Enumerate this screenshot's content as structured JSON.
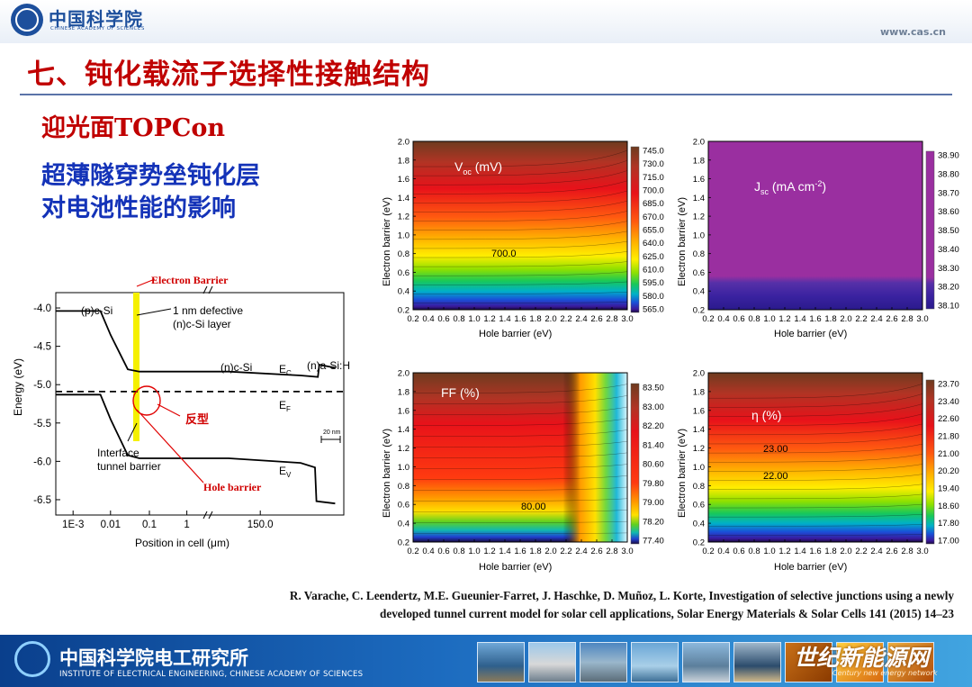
{
  "header": {
    "logo_text": "中国科学院",
    "logo_sub": "CHINESE ACADEMY OF SCIENCES",
    "url": "www.cas.cn"
  },
  "slide": {
    "title": "七、钝化载流子选择性接触结构",
    "subtitle_red": "迎光面TOPCon",
    "subtitle_blue_1": "超薄隧穿势垒钝化层",
    "subtitle_blue_2": "对电池性能的影响",
    "citation_1": "R. Varache, C. Leendertz, M.E. Gueunier-Farret, J. Haschke, D. Muñoz, L. Korte, Investigation of selective junctions using a newly",
    "citation_2": "developed tunnel current model for solar cell applications, Solar Energy Materials & Solar Cells 141 (2015) 14–23"
  },
  "footer": {
    "institute_cn": "中国科学院电工研究所",
    "institute_en": "INSTITUTE OF ELECTRICAL ENGINEERING, CHINESE ACADEMY OF SCIENCES",
    "watermark": "世纪新能源网",
    "watermark_sub": "Century new energy network"
  },
  "chart_data": [
    {
      "type": "line",
      "xlabel": "Position in cell (μm)",
      "ylabel": "Energy (eV)",
      "xtick_labels": [
        "1E-3",
        "0.01",
        "0.1",
        "1",
        "150.0"
      ],
      "yticks": [
        -4.0,
        -4.5,
        -5.0,
        -5.5,
        -6.0,
        -6.5
      ],
      "ylim": [
        -6.7,
        -3.8
      ],
      "scale_bar_label": "20 nm",
      "annotations": {
        "p_si": "(p)c-Si",
        "defective_1": "1 nm defective",
        "defective_2": "(n)c-Si layer",
        "n_si": "(n)c-Si",
        "n_asi": "(n)a-Si:H",
        "ec_main": "E",
        "ec_sub": "C",
        "ef_main": "E",
        "ef_sub": "F",
        "ev_main": "E",
        "ev_sub": "V",
        "interface_1": "Interface",
        "interface_2": "tunnel barrier",
        "electron_barrier": "Electron Barrier",
        "hole_barrier": "Hole barrier",
        "inversion": "反型"
      },
      "series": [
        {
          "name": "E_C",
          "points": [
            [
              0.0,
              -4.04
            ],
            [
              0.155,
              -4.04
            ],
            [
              0.19,
              -4.35
            ],
            [
              0.25,
              -4.8
            ],
            [
              0.29,
              -4.83
            ],
            [
              0.6,
              -4.83
            ],
            [
              0.85,
              -4.88
            ],
            [
              0.91,
              -4.9
            ],
            [
              0.915,
              -4.74
            ],
            [
              0.97,
              -4.78
            ]
          ]
        },
        {
          "name": "E_F",
          "points": [
            [
              0.0,
              -5.09
            ],
            [
              1.0,
              -5.09
            ]
          ]
        },
        {
          "name": "E_V",
          "points": [
            [
              0.0,
              -5.13
            ],
            [
              0.155,
              -5.13
            ],
            [
              0.19,
              -5.45
            ],
            [
              0.25,
              -5.92
            ],
            [
              0.29,
              -5.96
            ],
            [
              0.6,
              -5.96
            ],
            [
              0.85,
              -6.02
            ],
            [
              0.9,
              -6.08
            ],
            [
              0.905,
              -6.52
            ],
            [
              0.97,
              -6.55
            ]
          ]
        }
      ]
    },
    {
      "type": "heatmap",
      "title_main": "V",
      "title_sub": "oc",
      "title_rest": " (mV)",
      "xlabel": "Hole barrier (eV)",
      "ylabel": "Electron barrier (eV)",
      "xlim": [
        0.2,
        3.0
      ],
      "ylim": [
        0.2,
        2.0
      ],
      "colorbar_labels": [
        "745.0",
        "730.0",
        "715.0",
        "700.0",
        "685.0",
        "670.0",
        "655.0",
        "640.0",
        "625.0",
        "610.0",
        "595.0",
        "580.0",
        "565.0"
      ],
      "contour_label": "700.0"
    },
    {
      "type": "heatmap",
      "title_main": "J",
      "title_sub": "sc",
      "title_rest": " (mA cm",
      "title_sup": "-2",
      "title_end": ")",
      "xlabel": "Hole barrier (eV)",
      "ylabel": "Electron barrier (eV)",
      "xlim": [
        0.2,
        3.0
      ],
      "ylim": [
        0.2,
        2.0
      ],
      "colorbar_labels": [
        "38.90",
        "38.80",
        "38.70",
        "38.60",
        "38.50",
        "38.40",
        "38.30",
        "38.20",
        "38.10"
      ]
    },
    {
      "type": "heatmap",
      "title_main": "FF (%)",
      "xlabel": "Hole barrier (eV)",
      "ylabel": "Electron barrier (eV)",
      "xlim": [
        0.2,
        3.0
      ],
      "ylim": [
        0.2,
        2.0
      ],
      "colorbar_labels": [
        "83.50",
        "83.00",
        "82.20",
        "81.40",
        "80.60",
        "79.80",
        "79.00",
        "78.20",
        "77.40"
      ],
      "contour_label": "80.00"
    },
    {
      "type": "heatmap",
      "title_main": "η (%)",
      "xlabel": "Hole barrier (eV)",
      "ylabel": "Electron barrier (eV)",
      "xlim": [
        0.2,
        3.0
      ],
      "ylim": [
        0.2,
        2.0
      ],
      "colorbar_labels": [
        "23.70",
        "23.40",
        "22.60",
        "21.80",
        "21.00",
        "20.20",
        "19.40",
        "18.60",
        "17.80",
        "17.00"
      ],
      "contour_labels": [
        "23.00",
        "22.00"
      ]
    }
  ]
}
